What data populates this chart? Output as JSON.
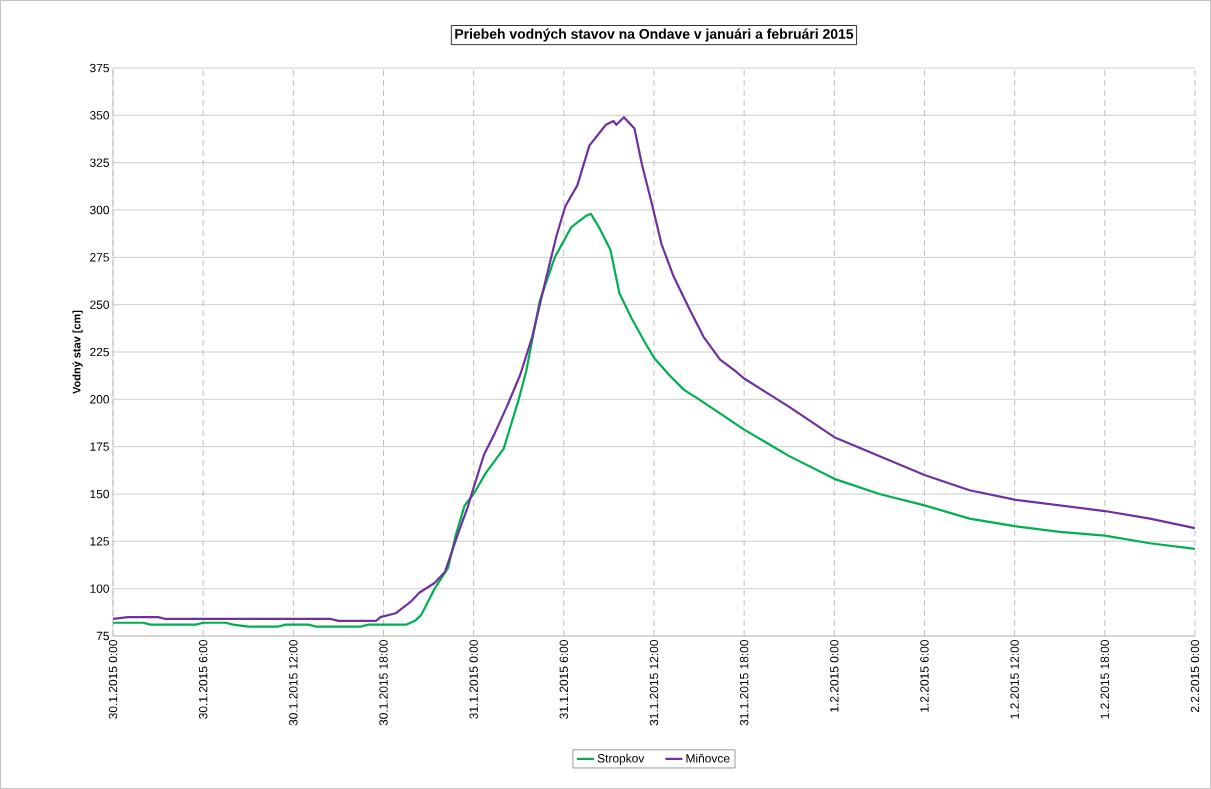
{
  "chart_data": {
    "type": "line",
    "title": "Priebeh vodných stavov na Ondave v januári a februári 2015",
    "ylabel": "Vodný stav [cm]",
    "xlim": [
      "2015-01-30T00:00",
      "2015-02-02T00:00"
    ],
    "xticks": [
      {
        "value": "2015-01-30T00:00",
        "label": "30.1.2015 0:00"
      },
      {
        "value": "2015-01-30T06:00",
        "label": "30.1.2015 6:00"
      },
      {
        "value": "2015-01-30T12:00",
        "label": "30.1.2015 12:00"
      },
      {
        "value": "2015-01-30T18:00",
        "label": "30.1.2015 18:00"
      },
      {
        "value": "2015-01-31T00:00",
        "label": "31.1.2015 0:00"
      },
      {
        "value": "2015-01-31T06:00",
        "label": "31.1.2015 6:00"
      },
      {
        "value": "2015-01-31T12:00",
        "label": "31.1.2015 12:00"
      },
      {
        "value": "2015-01-31T18:00",
        "label": "31.1.2015 18:00"
      },
      {
        "value": "2015-02-01T00:00",
        "label": "1.2.2015 0:00"
      },
      {
        "value": "2015-02-01T06:00",
        "label": "1.2.2015 6:00"
      },
      {
        "value": "2015-02-01T12:00",
        "label": "1.2.2015 12:00"
      },
      {
        "value": "2015-02-01T18:00",
        "label": "1.2.2015 18:00"
      },
      {
        "value": "2015-02-02T00:00",
        "label": "2.2.2015 0:00"
      }
    ],
    "ylim": [
      75,
      375
    ],
    "yticks": [
      75,
      100,
      125,
      150,
      175,
      200,
      225,
      250,
      275,
      300,
      325,
      350,
      375
    ],
    "grid": true,
    "legend": "bottom",
    "marker": "none",
    "line_style": "solid",
    "series": [
      {
        "name": "Stropkov",
        "color": "#00b050",
        "x": [
          "2015-01-30T00:00",
          "2015-01-30T02:00",
          "2015-01-30T02:30",
          "2015-01-30T05:30",
          "2015-01-30T06:00",
          "2015-01-30T07:30",
          "2015-01-30T08:00",
          "2015-01-30T09:00",
          "2015-01-30T11:00",
          "2015-01-30T11:30",
          "2015-01-30T13:00",
          "2015-01-30T13:30",
          "2015-01-30T16:30",
          "2015-01-30T17:00",
          "2015-01-30T19:30",
          "2015-01-30T20:06",
          "2015-01-30T20:30",
          "2015-01-30T21:24",
          "2015-01-30T22:18",
          "2015-01-30T22:48",
          "2015-01-30T23:24",
          "2015-01-31T00:00",
          "2015-01-31T00:48",
          "2015-01-31T02:00",
          "2015-01-31T03:00",
          "2015-01-31T03:30",
          "2015-01-31T04:24",
          "2015-01-31T05:24",
          "2015-01-31T06:30",
          "2015-01-31T07:00",
          "2015-01-31T07:30",
          "2015-01-31T07:48",
          "2015-01-31T08:24",
          "2015-01-31T09:06",
          "2015-01-31T09:42",
          "2015-01-31T10:30",
          "2015-01-31T11:24",
          "2015-01-31T12:00",
          "2015-01-31T13:00",
          "2015-01-31T14:00",
          "2015-01-31T15:00",
          "2015-01-31T18:00",
          "2015-01-31T21:00",
          "2015-02-01T00:00",
          "2015-02-01T03:00",
          "2015-02-01T06:00",
          "2015-02-01T09:00",
          "2015-02-01T12:00",
          "2015-02-01T15:00",
          "2015-02-01T18:00",
          "2015-02-01T21:00",
          "2015-02-02T00:00"
        ],
        "values": [
          82,
          82,
          81,
          81,
          82,
          82,
          81,
          80,
          80,
          81,
          81,
          80,
          80,
          81,
          81,
          83,
          86,
          100,
          111,
          128,
          144,
          150,
          161,
          174,
          200,
          215,
          252,
          275,
          291,
          294,
          297,
          298,
          290,
          279,
          256,
          243,
          230,
          222,
          213,
          205,
          200,
          184,
          170,
          158,
          150,
          144,
          137,
          133,
          130,
          128,
          124,
          121
        ]
      },
      {
        "name": "Miňovce",
        "color": "#7030a0",
        "x": [
          "2015-01-30T00:00",
          "2015-01-30T01:00",
          "2015-01-30T03:00",
          "2015-01-30T03:30",
          "2015-01-30T14:30",
          "2015-01-30T15:00",
          "2015-01-30T17:30",
          "2015-01-30T17:48",
          "2015-01-30T18:48",
          "2015-01-30T19:48",
          "2015-01-30T20:24",
          "2015-01-30T21:24",
          "2015-01-30T22:06",
          "2015-01-30T23:00",
          "2015-01-30T23:36",
          "2015-01-31T00:06",
          "2015-01-31T00:42",
          "2015-01-31T01:24",
          "2015-01-31T02:12",
          "2015-01-31T03:06",
          "2015-01-31T03:54",
          "2015-01-31T04:42",
          "2015-01-31T05:30",
          "2015-01-31T06:06",
          "2015-01-31T06:54",
          "2015-01-31T07:42",
          "2015-01-31T08:48",
          "2015-01-31T09:18",
          "2015-01-31T09:30",
          "2015-01-31T10:00",
          "2015-01-31T10:42",
          "2015-01-31T11:12",
          "2015-01-31T11:54",
          "2015-01-31T12:30",
          "2015-01-31T13:18",
          "2015-01-31T14:24",
          "2015-01-31T15:18",
          "2015-01-31T16:24",
          "2015-01-31T17:24",
          "2015-01-31T18:00",
          "2015-01-31T21:00",
          "2015-02-01T00:00",
          "2015-02-01T03:00",
          "2015-02-01T06:00",
          "2015-02-01T09:00",
          "2015-02-01T12:00",
          "2015-02-01T15:00",
          "2015-02-01T18:00",
          "2015-02-01T21:00",
          "2015-02-02T00:00"
        ],
        "values": [
          84,
          85,
          85,
          84,
          84,
          83,
          83,
          85,
          87,
          93,
          98,
          103,
          109,
          130,
          143,
          156,
          171,
          182,
          196,
          213,
          233,
          260,
          286,
          302,
          313,
          334,
          345,
          347,
          345,
          349,
          343,
          324,
          302,
          282,
          265,
          247,
          233,
          221,
          215,
          211,
          196,
          180,
          170,
          160,
          152,
          147,
          144,
          141,
          137,
          132
        ]
      }
    ]
  }
}
